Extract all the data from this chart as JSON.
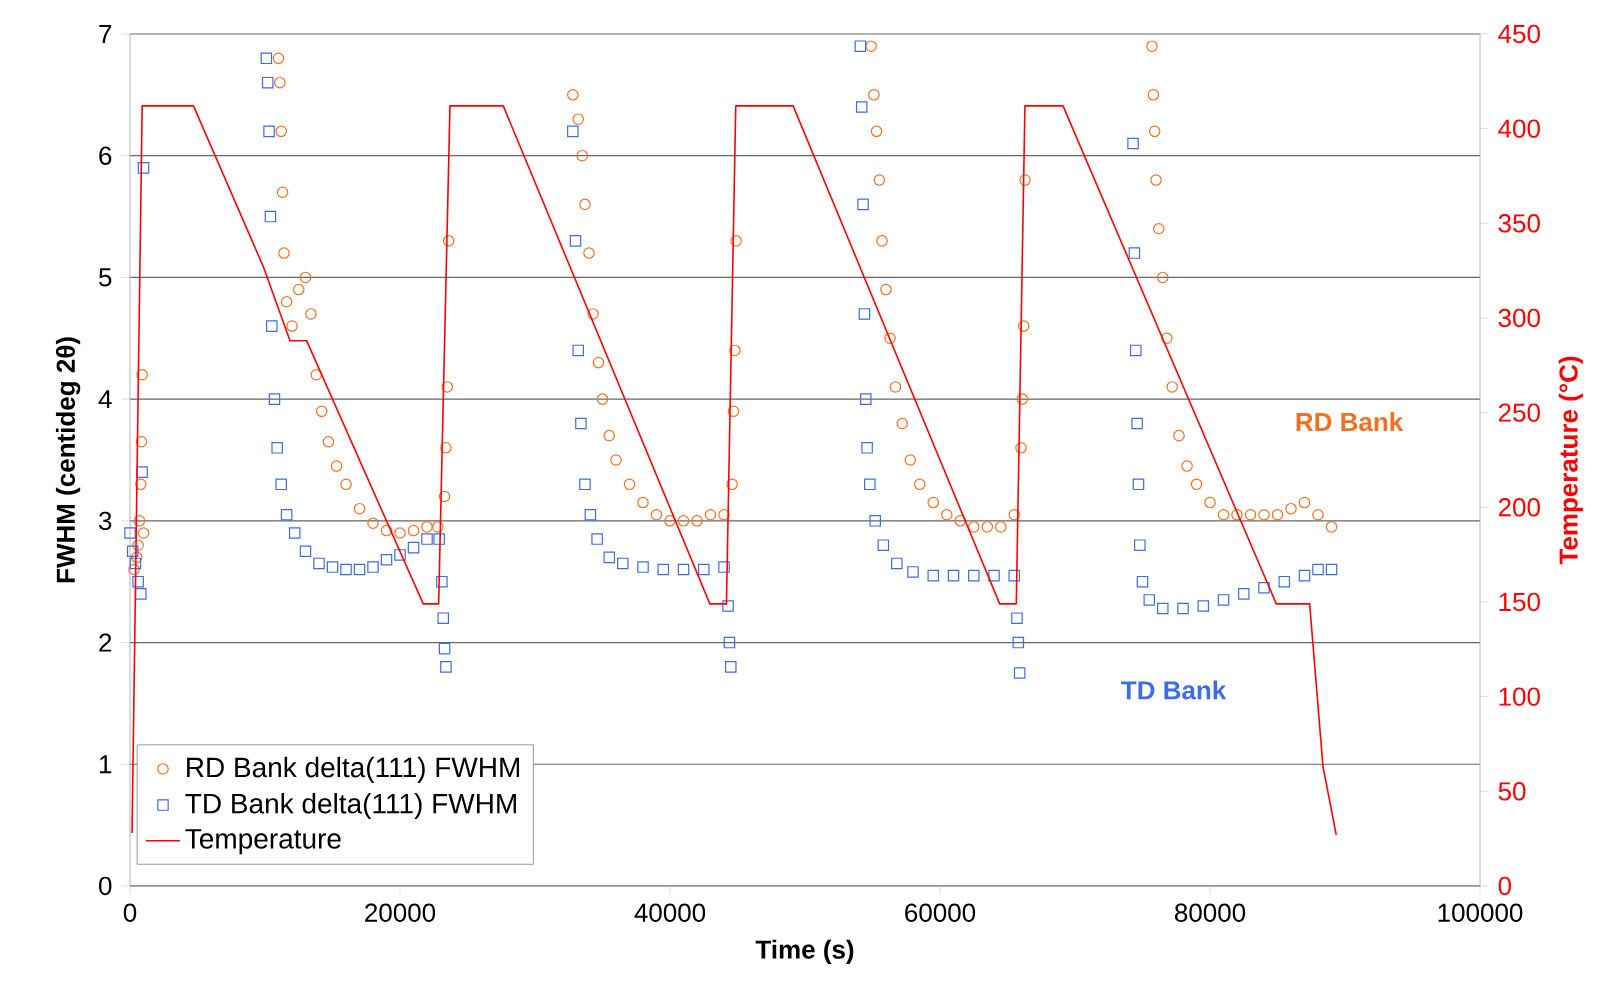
{
  "chart_data": {
    "type": "scatter",
    "xlabel": "Time (s)",
    "ylabel": "FWHM (centideg 2θ)",
    "y2label": "Temperature (°C)",
    "xlim": [
      0,
      100000
    ],
    "xticks": [
      0,
      20000,
      40000,
      60000,
      80000,
      100000
    ],
    "ylim": [
      0,
      7
    ],
    "yticks": [
      0,
      1,
      2,
      3,
      4,
      5,
      6,
      7
    ],
    "y2lim": [
      0,
      450
    ],
    "y2ticks": [
      0,
      50,
      100,
      150,
      200,
      250,
      300,
      350,
      400,
      450
    ],
    "grid": "y",
    "legend": "bottom left",
    "annotations": [
      "RD Bank",
      "TD Bank"
    ],
    "series": [
      {
        "name": "RD Bank delta(111)  FWHM",
        "marker": "circle",
        "color": "#f37021",
        "x": [
          300,
          500,
          600,
          700,
          800,
          850,
          900,
          1000,
          11000,
          11100,
          11200,
          11300,
          11400,
          11600,
          12000,
          12500,
          13000,
          13400,
          13800,
          14200,
          14700,
          15300,
          16000,
          17000,
          18000,
          19000,
          20000,
          21000,
          22000,
          22800,
          23300,
          23400,
          23500,
          23600,
          32800,
          33200,
          33500,
          33700,
          34000,
          34300,
          34700,
          35000,
          35500,
          36000,
          37000,
          38000,
          39000,
          40000,
          41000,
          42000,
          43000,
          44000,
          44600,
          44700,
          44800,
          44900,
          54900,
          55100,
          55300,
          55500,
          55700,
          56000,
          56300,
          56700,
          57200,
          57800,
          58500,
          59500,
          60500,
          61500,
          62500,
          63500,
          64500,
          65500,
          66000,
          66100,
          66200,
          66300,
          75700,
          75800,
          75900,
          76000,
          76200,
          76500,
          76800,
          77200,
          77700,
          78300,
          79000,
          80000,
          81000,
          82000,
          83000,
          84000,
          85000,
          86000,
          87000,
          88000,
          89000
        ],
        "values": [
          2.6,
          2.7,
          2.8,
          3.0,
          3.3,
          3.65,
          4.2,
          2.9,
          6.8,
          6.6,
          6.2,
          5.7,
          5.2,
          4.8,
          4.6,
          4.9,
          5.0,
          4.7,
          4.2,
          3.9,
          3.65,
          3.45,
          3.3,
          3.1,
          2.98,
          2.92,
          2.9,
          2.92,
          2.95,
          2.95,
          3.2,
          3.6,
          4.1,
          5.3,
          6.5,
          6.3,
          6.0,
          5.6,
          5.2,
          4.7,
          4.3,
          4.0,
          3.7,
          3.5,
          3.3,
          3.15,
          3.05,
          3.0,
          3.0,
          3.0,
          3.05,
          3.05,
          3.3,
          3.9,
          4.4,
          5.3,
          6.9,
          6.5,
          6.2,
          5.8,
          5.3,
          4.9,
          4.5,
          4.1,
          3.8,
          3.5,
          3.3,
          3.15,
          3.05,
          3.0,
          2.95,
          2.95,
          2.95,
          3.05,
          3.6,
          4.0,
          4.6,
          5.8,
          6.9,
          6.5,
          6.2,
          5.8,
          5.4,
          5.0,
          4.5,
          4.1,
          3.7,
          3.45,
          3.3,
          3.15,
          3.05,
          3.05,
          3.05,
          3.05,
          3.05,
          3.1,
          3.15,
          3.05,
          2.95
        ]
      },
      {
        "name": "TD Bank delta(111)  FWHM",
        "marker": "square",
        "color": "#3d6ce8",
        "x": [
          0,
          200,
          400,
          600,
          800,
          900,
          1000,
          10100,
          10200,
          10300,
          10400,
          10500,
          10700,
          10900,
          11200,
          11600,
          12200,
          13000,
          14000,
          15000,
          16000,
          17000,
          18000,
          19000,
          20000,
          21000,
          22000,
          22900,
          23100,
          23200,
          23300,
          23400,
          32800,
          33000,
          33200,
          33400,
          33700,
          34100,
          34600,
          35500,
          36500,
          38000,
          39500,
          41000,
          42500,
          44000,
          44300,
          44400,
          44500,
          54100,
          54200,
          54300,
          54400,
          54500,
          54600,
          54800,
          55200,
          55800,
          56800,
          58000,
          59500,
          61000,
          62500,
          64000,
          65500,
          65700,
          65800,
          65900,
          74300,
          74400,
          74500,
          74600,
          74700,
          74800,
          75000,
          75500,
          76500,
          78000,
          79500,
          81000,
          82500,
          84000,
          85500,
          87000,
          88000,
          89000
        ],
        "values": [
          2.9,
          2.75,
          2.65,
          2.5,
          2.4,
          3.4,
          5.9,
          6.8,
          6.6,
          6.2,
          5.5,
          4.6,
          4.0,
          3.6,
          3.3,
          3.05,
          2.9,
          2.75,
          2.65,
          2.62,
          2.6,
          2.6,
          2.62,
          2.68,
          2.72,
          2.78,
          2.85,
          2.85,
          2.5,
          2.2,
          1.95,
          1.8,
          6.2,
          5.3,
          4.4,
          3.8,
          3.3,
          3.05,
          2.85,
          2.7,
          2.65,
          2.62,
          2.6,
          2.6,
          2.6,
          2.62,
          2.3,
          2.0,
          1.8,
          6.9,
          6.4,
          5.6,
          4.7,
          4.0,
          3.6,
          3.3,
          3.0,
          2.8,
          2.65,
          2.58,
          2.55,
          2.55,
          2.55,
          2.55,
          2.55,
          2.2,
          2.0,
          1.75,
          6.1,
          5.2,
          4.4,
          3.8,
          3.3,
          2.8,
          2.5,
          2.35,
          2.28,
          2.28,
          2.3,
          2.35,
          2.4,
          2.45,
          2.5,
          2.55,
          2.6,
          2.6
        ]
      },
      {
        "name": "Temperature",
        "type": "line",
        "axis": "y2",
        "marker": "none",
        "color": "#ff0000",
        "x": [
          150,
          900,
          4700,
          9880,
          11850,
          13080,
          21720,
          22860,
          23700,
          27650,
          42950,
          44180,
          44870,
          49120,
          64420,
          65650,
          66290,
          69110,
          84910,
          87380,
          88370,
          89350
        ],
        "values": [
          28,
          412,
          412,
          327,
          288,
          288,
          149,
          149,
          412,
          412,
          149,
          149,
          412,
          412,
          149,
          149,
          412,
          412,
          149,
          149,
          63,
          27
        ]
      }
    ]
  }
}
